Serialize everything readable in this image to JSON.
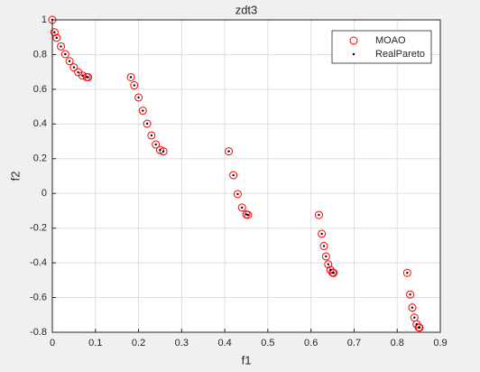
{
  "chart_data": {
    "type": "scatter",
    "title": "zdt3",
    "xlabel": "f1",
    "ylabel": "f2",
    "xlim": [
      0,
      0.9
    ],
    "ylim": [
      -0.8,
      1
    ],
    "xticks": [
      0,
      0.1,
      0.2,
      0.3,
      0.4,
      0.5,
      0.6,
      0.7,
      0.8,
      0.9
    ],
    "yticks": [
      -0.8,
      -0.6,
      -0.4,
      -0.2,
      0,
      0.2,
      0.4,
      0.6,
      0.8,
      1
    ],
    "grid": true,
    "legend": "northeast",
    "series": [
      {
        "name": "MOAO",
        "color": "#ff0000",
        "marker": "circle",
        "x": [
          0,
          0.005,
          0.01,
          0.02,
          0.03,
          0.04,
          0.05,
          0.06,
          0.07,
          0.08,
          0.083,
          0.1822,
          0.19,
          0.2,
          0.21,
          0.22,
          0.23,
          0.24,
          0.25,
          0.2578,
          0.4093,
          0.42,
          0.43,
          0.44,
          0.45,
          0.4539,
          0.6184,
          0.625,
          0.63,
          0.635,
          0.64,
          0.645,
          0.65,
          0.6525,
          0.8233,
          0.83,
          0.835,
          0.84,
          0.845,
          0.85,
          0.8518
        ],
        "values": [
          1,
          0.9285,
          0.8969,
          0.8468,
          0.8025,
          0.762,
          0.7264,
          0.698,
          0.6788,
          0.6702,
          0.6695,
          0.6697,
          0.6228,
          0.5528,
          0.4768,
          0.4017,
          0.3343,
          0.2819,
          0.25,
          0.2422,
          0.2425,
          0.105,
          -0.0036,
          -0.0817,
          -0.1208,
          -0.1242,
          -0.1242,
          -0.2325,
          -0.3034,
          -0.3627,
          -0.4086,
          -0.4402,
          -0.4562,
          -0.4583,
          -0.4579,
          -0.5825,
          -0.6578,
          -0.7153,
          -0.7538,
          -0.772,
          -0.7733
        ]
      },
      {
        "name": "RealPareto",
        "color": "#000000",
        "marker": "dot",
        "x": [
          0,
          0.005,
          0.01,
          0.02,
          0.03,
          0.04,
          0.05,
          0.06,
          0.07,
          0.08,
          0.083,
          0.1822,
          0.19,
          0.2,
          0.21,
          0.22,
          0.23,
          0.24,
          0.25,
          0.2578,
          0.4093,
          0.42,
          0.43,
          0.44,
          0.45,
          0.4539,
          0.6184,
          0.625,
          0.63,
          0.635,
          0.64,
          0.645,
          0.65,
          0.6525,
          0.8233,
          0.83,
          0.835,
          0.84,
          0.845,
          0.85,
          0.8518
        ],
        "values": [
          1,
          0.9285,
          0.8969,
          0.8468,
          0.8025,
          0.762,
          0.7264,
          0.698,
          0.6788,
          0.6702,
          0.6695,
          0.6697,
          0.6228,
          0.5528,
          0.4768,
          0.4017,
          0.3343,
          0.2819,
          0.25,
          0.2422,
          0.2425,
          0.105,
          -0.0036,
          -0.0817,
          -0.1208,
          -0.1242,
          -0.1242,
          -0.2325,
          -0.3034,
          -0.3627,
          -0.4086,
          -0.4402,
          -0.4562,
          -0.4583,
          -0.4579,
          -0.5825,
          -0.6578,
          -0.7153,
          -0.7538,
          -0.772,
          -0.7733
        ]
      }
    ]
  }
}
